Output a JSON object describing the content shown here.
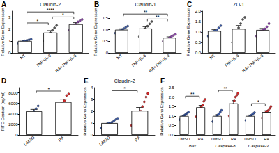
{
  "chart_data": [
    {
      "panel": "A",
      "type": "bar",
      "title": "Claudin-2",
      "y_label": "Relative Gene Expression",
      "categories": [
        "NT",
        "TNF+IL-6",
        "RA+TNF+IL-6"
      ],
      "values": [
        1.0,
        1.7,
        2.4
      ],
      "errors": [
        0.05,
        0.17,
        0.13
      ],
      "points": [
        [
          0.8,
          0.9,
          0.95,
          1.0,
          1.05,
          1.1,
          1.15
        ],
        [
          1.0,
          1.3,
          1.5,
          1.7,
          1.9,
          2.1,
          2.3
        ],
        [
          1.9,
          2.1,
          2.3,
          2.4,
          2.6,
          2.7,
          2.8
        ]
      ],
      "colors": [
        "#3b5ba9",
        "#555555",
        "#8e44ad"
      ],
      "ylim": [
        0,
        3.5
      ],
      "yticks": [
        0,
        1,
        2,
        3
      ],
      "significance": [
        {
          "groups": [
            0,
            1
          ],
          "label": "*"
        },
        {
          "groups": [
            1,
            2
          ],
          "label": "*"
        },
        {
          "groups": [
            0,
            2
          ],
          "label": "****"
        }
      ]
    },
    {
      "panel": "B",
      "type": "bar",
      "title": "Claudin-1",
      "y_label": "Relative Gene Expression",
      "categories": [
        "NT",
        "TNF+IL-6",
        "RA+TNF+IL-6"
      ],
      "values": [
        1.0,
        1.05,
        0.65
      ],
      "errors": [
        0.04,
        0.08,
        0.04
      ],
      "points": [
        [
          0.85,
          0.9,
          0.95,
          1.0,
          1.05,
          1.1,
          1.15
        ],
        [
          0.7,
          0.85,
          1.0,
          1.05,
          1.15,
          1.25,
          1.35
        ],
        [
          0.5,
          0.55,
          0.6,
          0.65,
          0.7,
          0.75,
          0.8
        ]
      ],
      "colors": [
        "#3b5ba9",
        "#555555",
        "#8e44ad"
      ],
      "ylim": [
        0,
        1.8
      ],
      "yticks": [
        0,
        {
          "value": 0.5,
          "label": "0.5"
        },
        {
          "value": 1,
          "label": "1.0"
        },
        {
          "value": 1.5,
          "label": "1.5"
        }
      ],
      "significance": [
        {
          "groups": [
            1,
            2
          ],
          "label": "**"
        },
        {
          "groups": [
            0,
            2
          ],
          "label": "**"
        }
      ]
    },
    {
      "panel": "C",
      "type": "bar",
      "title": "ZO-1",
      "y_label": "Relative Gene Expression",
      "categories": [
        "NT",
        "TNF+IL-6",
        "RA+TNF+IL-6"
      ],
      "values": [
        1.05,
        1.15,
        1.1
      ],
      "errors": [
        0.06,
        0.16,
        0.07
      ],
      "points": [
        [
          0.8,
          0.9,
          1.0,
          1.05,
          1.1,
          1.2,
          1.3
        ],
        [
          0.5,
          0.8,
          1.0,
          1.2,
          1.4,
          1.6,
          1.7
        ],
        [
          0.8,
          0.95,
          1.05,
          1.1,
          1.15,
          1.25,
          1.4
        ]
      ],
      "colors": [
        "#3b5ba9",
        "#555555",
        "#8e44ad"
      ],
      "ylim": [
        0,
        2
      ],
      "yticks": [
        {
          "value": 0,
          "label": "0.0"
        },
        {
          "value": 0.5,
          "label": "0.5"
        },
        {
          "value": 1,
          "label": "1.0"
        },
        {
          "value": 1.5,
          "label": "1.5"
        },
        {
          "value": 2,
          "label": "2.0"
        }
      ],
      "significance": []
    },
    {
      "panel": "D",
      "type": "bar",
      "y_label": "FITC-Dextran (ng/ml)",
      "categories": [
        "DMSO",
        "RA"
      ],
      "values": [
        4500,
        6250
      ],
      "errors": [
        350,
        550
      ],
      "points": [
        [
          3500,
          4000,
          4500,
          5000,
          5500
        ],
        [
          4500,
          5000,
          6000,
          6500,
          7500,
          7800
        ]
      ],
      "colors": [
        "#3b5ba9",
        "#d62728"
      ],
      "ylim": [
        0,
        9000
      ],
      "yticks": [
        0,
        2000,
        4000,
        6000,
        8000
      ],
      "significance": [
        {
          "groups": [
            0,
            1
          ],
          "label": "*"
        }
      ]
    },
    {
      "panel": "E",
      "type": "bar",
      "title": "Claudin-2",
      "y_label": "Relative Gene Expression",
      "categories": [
        "DMSO",
        "RA"
      ],
      "values": [
        1.0,
        2.04
      ],
      "errors": [
        0.08,
        0.28
      ],
      "points": [
        [
          0.6,
          0.7,
          0.8,
          0.9,
          1.0,
          1.0,
          1.1,
          1.2,
          1.3,
          1.4
        ],
        [
          0.8,
          1.0,
          1.3,
          1.6,
          1.8,
          2.0,
          2.4,
          2.8,
          3.2,
          3.5
        ]
      ],
      "colors": [
        "#3b5ba9",
        "#d62728"
      ],
      "ylim": [
        0,
        4
      ],
      "yticks": [
        0,
        1,
        2,
        3,
        4
      ],
      "significance": [
        {
          "groups": [
            0,
            1
          ],
          "label": "*"
        }
      ]
    },
    {
      "panel": "F",
      "type": "bar",
      "y_label": "Relative Gene Expression",
      "categories": [
        "Bax",
        "Caspase-8",
        "Caspase-3"
      ],
      "series": [
        {
          "name": "DMSO",
          "color": "#3b5ba9",
          "values": [
            1.0,
            1.0,
            1.0
          ],
          "errors": [
            0.05,
            0.07,
            0.05
          ],
          "points": [
            [
              0.8,
              0.9,
              0.95,
              1.0,
              1.05,
              1.1,
              1.15,
              1.2
            ],
            [
              0.7,
              0.8,
              0.9,
              1.0,
              1.05,
              1.1,
              1.2,
              1.3
            ],
            [
              0.8,
              0.9,
              0.95,
              1.0,
              1.05,
              1.1,
              1.15,
              1.2
            ]
          ]
        },
        {
          "name": "RA",
          "color": "#d62728",
          "values": [
            1.46,
            1.66,
            1.21
          ],
          "errors": [
            0.1,
            0.15,
            0.07
          ],
          "points": [
            [
              1.0,
              1.2,
              1.3,
              1.4,
              1.5,
              1.6,
              1.8,
              1.9
            ],
            [
              1.0,
              1.2,
              1.4,
              1.6,
              1.8,
              2.0,
              2.1,
              2.2
            ],
            [
              0.9,
              1.0,
              1.1,
              1.2,
              1.25,
              1.3,
              1.4,
              1.5
            ]
          ]
        }
      ],
      "ylim": [
        0,
        2.5
      ],
      "yticks": [
        {
          "value": 0,
          "label": "0.0"
        },
        {
          "value": 0.5,
          "label": "0.5"
        },
        {
          "value": 1,
          "label": "1.0"
        },
        {
          "value": 1.5,
          "label": "1.5"
        },
        {
          "value": 2,
          "label": "2.0"
        },
        {
          "value": 2.5,
          "label": "2.5"
        }
      ],
      "significance": [
        {
          "category": 0,
          "label": "**"
        },
        {
          "category": 1,
          "label": "**"
        },
        {
          "category": 2,
          "label": "*"
        }
      ]
    }
  ]
}
